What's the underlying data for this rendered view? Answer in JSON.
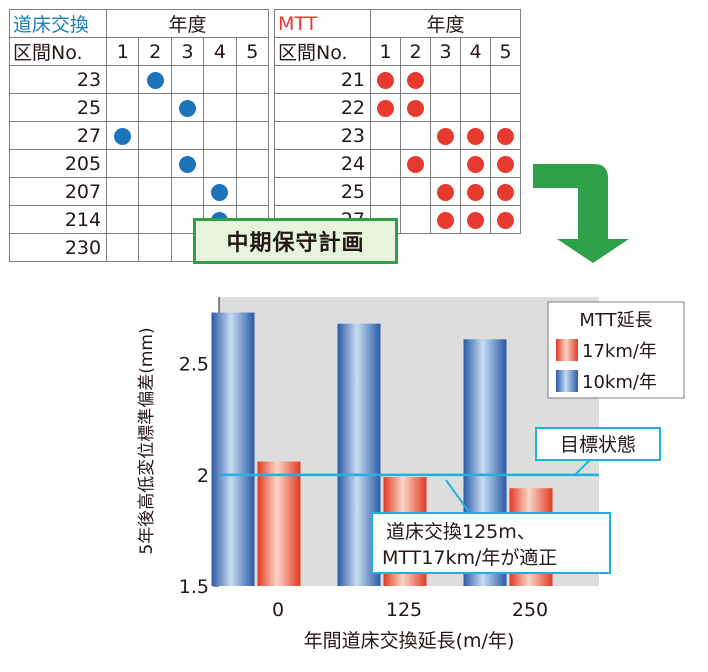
{
  "table_track": {
    "name": "道床交換",
    "year_header": "年度",
    "section_header": "区間No.",
    "years": [
      "1",
      "2",
      "3",
      "4",
      "5"
    ],
    "rows": [
      {
        "section": "23",
        "marks": [
          false,
          true,
          false,
          false,
          false
        ]
      },
      {
        "section": "25",
        "marks": [
          false,
          false,
          true,
          false,
          false
        ]
      },
      {
        "section": "27",
        "marks": [
          true,
          false,
          false,
          false,
          false
        ]
      },
      {
        "section": "205",
        "marks": [
          false,
          false,
          true,
          false,
          false
        ]
      },
      {
        "section": "207",
        "marks": [
          false,
          false,
          false,
          true,
          false
        ]
      },
      {
        "section": "214",
        "marks": [
          false,
          false,
          false,
          true,
          false
        ]
      },
      {
        "section": "230",
        "marks": [
          false,
          false,
          false,
          false,
          false
        ]
      }
    ],
    "dot_color": "#1e74b8"
  },
  "table_mtt": {
    "name": "MTT",
    "year_header": "年度",
    "section_header": "区間No.",
    "years": [
      "1",
      "2",
      "3",
      "4",
      "5"
    ],
    "rows": [
      {
        "section": "21",
        "marks": [
          true,
          true,
          false,
          false,
          false
        ]
      },
      {
        "section": "22",
        "marks": [
          true,
          true,
          false,
          false,
          false
        ]
      },
      {
        "section": "23",
        "marks": [
          false,
          false,
          true,
          true,
          true
        ]
      },
      {
        "section": "24",
        "marks": [
          false,
          true,
          false,
          true,
          true
        ]
      },
      {
        "section": "25",
        "marks": [
          false,
          false,
          true,
          true,
          true
        ]
      },
      {
        "section": "27",
        "marks": [
          false,
          false,
          true,
          true,
          true
        ]
      }
    ],
    "dot_color": "#e63a2e"
  },
  "plan_label": "中期保守計画",
  "arrow_color": "#2ea04a",
  "chart_data": {
    "type": "bar",
    "categories": [
      "0",
      "125",
      "250"
    ],
    "series": [
      {
        "name": "10km/年",
        "values": [
          2.73,
          2.68,
          2.61
        ],
        "color": "#2f68b5"
      },
      {
        "name": "17km/年",
        "values": [
          2.06,
          1.99,
          1.94
        ],
        "color": "#e8452f"
      }
    ],
    "xlabel": "年間道床交換延長(m/年)",
    "ylabel": "5年後高低変位標準偏差(mm)",
    "ylim": [
      1.5,
      2.8
    ],
    "yticks": [
      "1.5",
      "2",
      "2.5"
    ],
    "grid": false,
    "legend": {
      "title": "MTT延長",
      "position": "top-right"
    },
    "target_line": {
      "value": 2.0,
      "label": "目標状態",
      "color": "#1fb2e0"
    },
    "annotation": {
      "lines": [
        "道床交換125m、",
        "MTT17km/年が適正"
      ]
    }
  }
}
